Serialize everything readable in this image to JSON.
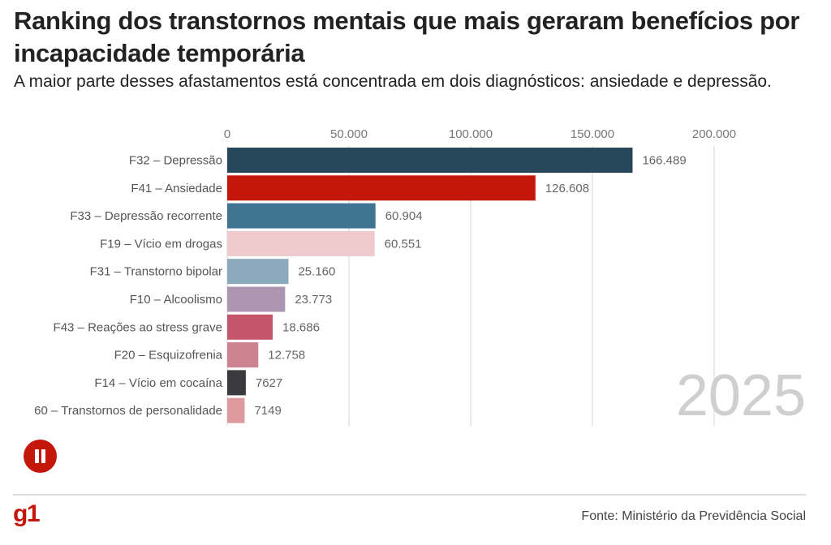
{
  "header": {
    "title": "Ranking dos transtornos mentais que mais geraram benefícios por incapacidade temporária",
    "subtitle": "A maior parte desses afastamentos está concentrada em dois diagnósticos: ansiedade e depressão."
  },
  "chart_data": {
    "type": "bar",
    "orientation": "horizontal",
    "title": "Ranking dos transtornos mentais que mais geraram benefícios por incapacidade temporária",
    "subtitle": "A maior parte desses afastamentos está concentrada em dois diagnósticos: ansiedade e depressão.",
    "xlabel": "",
    "ylabel": "",
    "xlim": [
      0,
      200000
    ],
    "axis_position": "top",
    "grid": true,
    "xticks": [
      0,
      50000,
      100000,
      150000,
      200000
    ],
    "xtick_labels": [
      "0",
      "50.000",
      "100.000",
      "150.000",
      "200.000"
    ],
    "period_label": "2025",
    "categories": [
      "F32 – Depressão",
      "F41 – Ansiedade",
      "F33 – Depressão recorrente",
      "F19 – Vício em drogas",
      "F31 – Transtorno bipolar",
      "F10 – Alcoolismo",
      "F43 – Reações ao stress grave",
      "F20 – Esquizofrenia",
      "F14 – Vício em cocaína",
      "60 – Transtornos de personalidade"
    ],
    "values": [
      166489,
      126608,
      60904,
      60551,
      25160,
      23773,
      18686,
      12758,
      7627,
      7149
    ],
    "value_labels": [
      "166.489",
      "126.608",
      "60.904",
      "60.551",
      "25.160",
      "23.773",
      "18.686",
      "12.758",
      "7627",
      "7149"
    ],
    "colors": [
      "#27475a",
      "#c4170c",
      "#3f7591",
      "#efcacd",
      "#8aa9bd",
      "#ac95b0",
      "#c5556a",
      "#cd8490",
      "#3b3b3d",
      "#de9a9e"
    ]
  },
  "controls": {
    "pause_icon": "pause-icon"
  },
  "footer": {
    "logo": "g1",
    "source": "Fonte: Ministério da Previdência Social"
  }
}
